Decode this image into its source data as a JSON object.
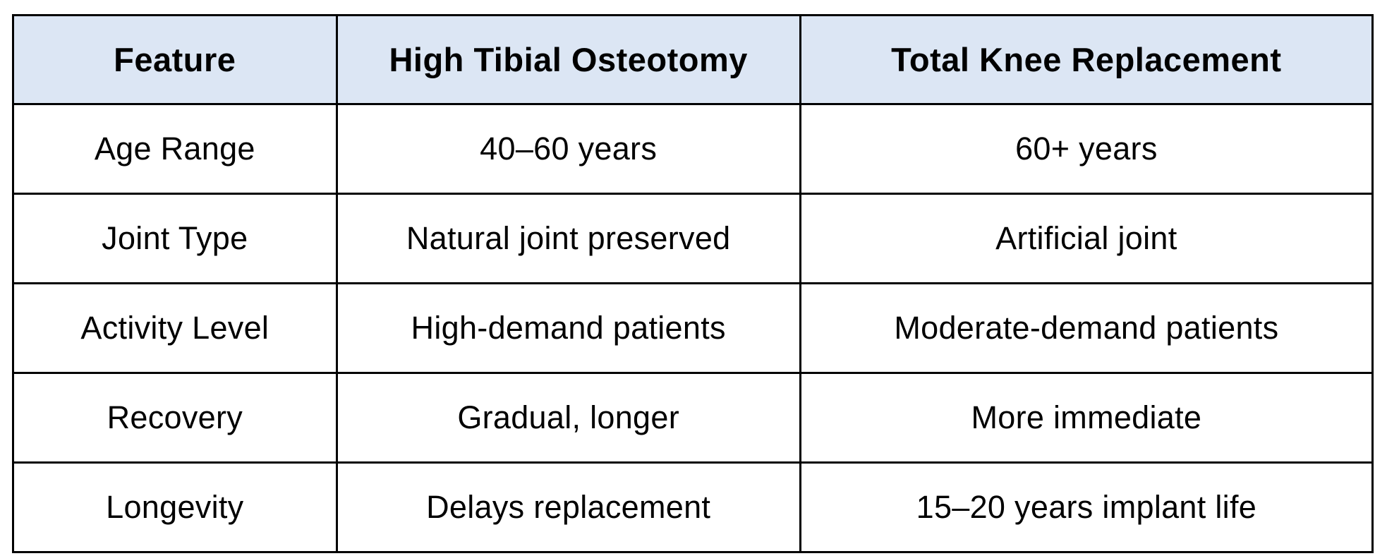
{
  "table": {
    "header": [
      "Feature",
      "High Tibial Osteotomy",
      "Total Knee Replacement"
    ],
    "rows": [
      [
        "Age Range",
        "40–60 years",
        "60+ years"
      ],
      [
        "Joint Type",
        "Natural joint preserved",
        "Artificial joint"
      ],
      [
        "Activity Level",
        "High-demand patients",
        "Moderate-demand patients"
      ],
      [
        "Recovery",
        "Gradual, longer",
        "More immediate"
      ],
      [
        "Longevity",
        "Delays replacement",
        "15–20 years implant life"
      ]
    ]
  },
  "colors": {
    "header_bg": "#dce6f4",
    "border": "#000000",
    "text": "#000000",
    "background": "#ffffff"
  }
}
